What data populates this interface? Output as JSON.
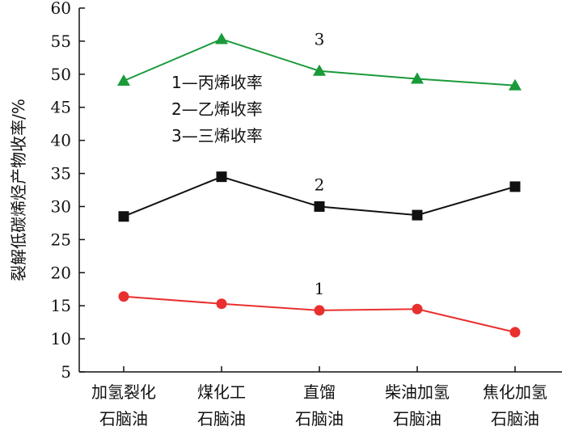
{
  "chart_data": {
    "type": "line",
    "categories": [
      [
        "加氢裂化",
        "石脑油"
      ],
      [
        "煤化工",
        "石脑油"
      ],
      [
        "直馏",
        "石脑油"
      ],
      [
        "柴油加氢",
        "石脑油"
      ],
      [
        "焦化加氢",
        "石脑油"
      ]
    ],
    "ylabel": "裂解低碳烯烃产物收率/%",
    "ylim": [
      5,
      60
    ],
    "yticks": [
      5,
      10,
      15,
      20,
      25,
      30,
      35,
      40,
      45,
      50,
      55,
      60
    ],
    "series": [
      {
        "name": "1—丙烯收率",
        "id_label": "1",
        "color": "#e8302f",
        "marker": "circle",
        "values": [
          16.4,
          15.3,
          14.3,
          14.5,
          11.0
        ]
      },
      {
        "name": "2—乙烯收率",
        "id_label": "2",
        "color": "#111111",
        "marker": "square",
        "values": [
          28.5,
          34.5,
          30.0,
          28.7,
          33.0
        ]
      },
      {
        "name": "3—三烯收率",
        "id_label": "3",
        "color": "#1a9a3a",
        "marker": "triangle",
        "values": [
          49.0,
          55.3,
          50.5,
          49.3,
          48.3
        ]
      }
    ],
    "legend": [
      "1—丙烯收率",
      "2—乙烯收率",
      "3—三烯收率"
    ],
    "legend_position": "upper-left"
  }
}
